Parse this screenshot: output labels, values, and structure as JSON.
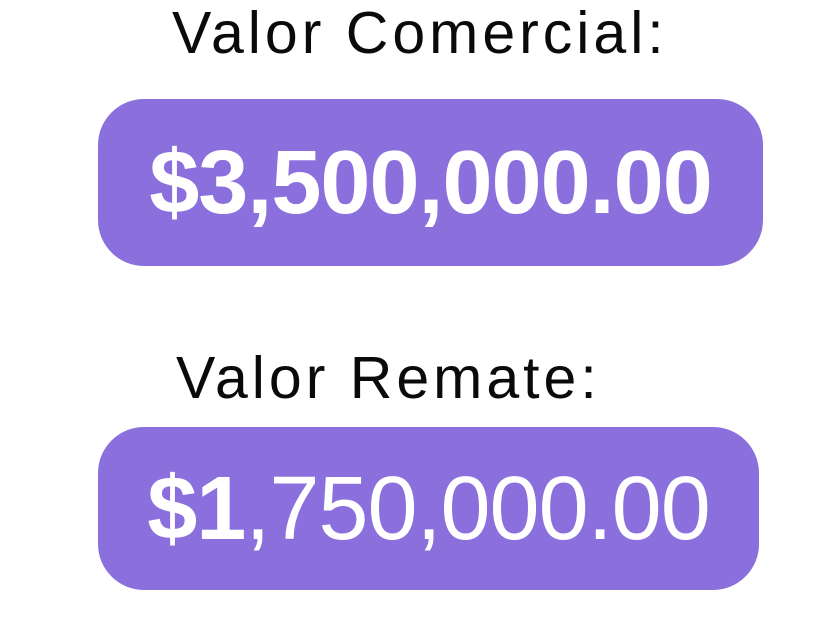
{
  "panel": {
    "background_color": "#ffffff",
    "accent_color": "#8a6fdd",
    "label_color": "#0a0a0a",
    "value_color": "#ffffff",
    "fields": [
      {
        "label": "Valor Comercial:",
        "amount": "$3,500,000.00",
        "amount_lead": "$3",
        "amount_rest": ",500,000.00"
      },
      {
        "label": "Valor Remate:",
        "amount": "$1,750,000.00",
        "amount_lead": "$1",
        "amount_rest": ",750,000.00"
      }
    ]
  }
}
